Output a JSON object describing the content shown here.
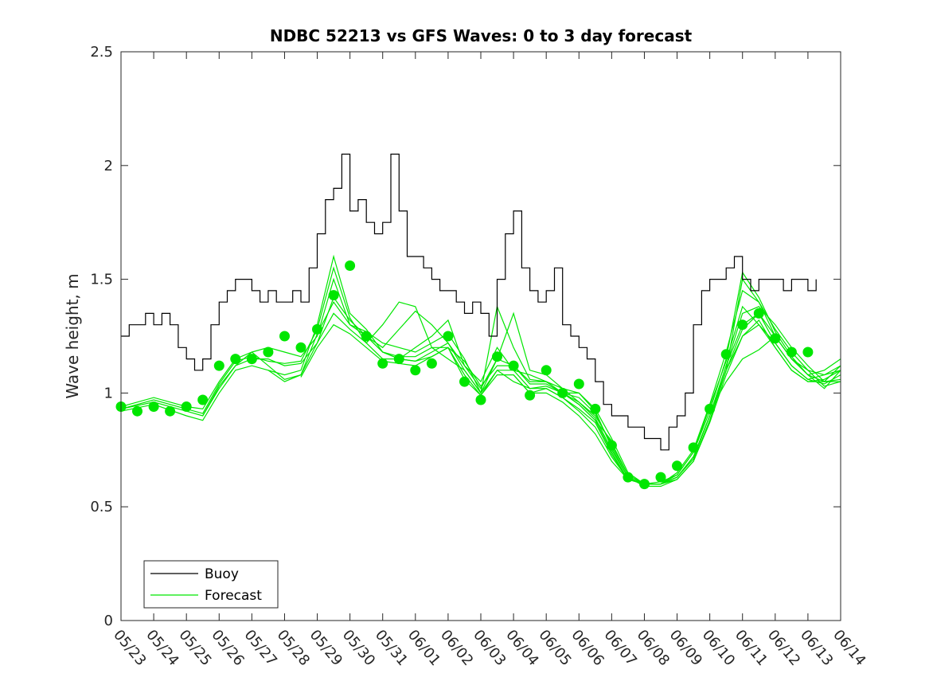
{
  "chart_data": {
    "type": "line",
    "title": "NDBC 52213 vs GFS Waves: 0 to 3 day forecast",
    "ylabel": "Wave height, m",
    "xlabel": "",
    "xlim": [
      0,
      22
    ],
    "ylim": [
      0,
      2.5
    ],
    "yticks": [
      0,
      0.5,
      1,
      1.5,
      2,
      2.5
    ],
    "ytick_labels": [
      "0",
      "0.5",
      "1",
      "1.5",
      "2",
      "2.5"
    ],
    "xticks": [
      0,
      1,
      2,
      3,
      4,
      5,
      6,
      7,
      8,
      9,
      10,
      11,
      12,
      13,
      14,
      15,
      16,
      17,
      18,
      19,
      20,
      21,
      22
    ],
    "xtick_labels": [
      "05/23",
      "05/24",
      "05/25",
      "05/26",
      "05/27",
      "05/28",
      "05/29",
      "05/30",
      "05/31",
      "06/01",
      "06/02",
      "06/03",
      "06/04",
      "06/05",
      "06/06",
      "06/07",
      "06/08",
      "06/09",
      "06/10",
      "06/11",
      "06/12",
      "06/13",
      "06/14"
    ],
    "x_units": "days from 05/23",
    "grid": false,
    "legend_placement": "bottom-left",
    "legend": [
      {
        "label": "Buoy",
        "color": "#000000"
      },
      {
        "label": "Forecast",
        "color": "#00e600"
      }
    ],
    "colors": {
      "buoy": "#000000",
      "forecast": "#00e600",
      "axes": "#262626"
    },
    "buoy": {
      "x": [
        0,
        0.25,
        0.5,
        0.75,
        1,
        1.25,
        1.5,
        1.75,
        2,
        2.25,
        2.5,
        2.75,
        3,
        3.25,
        3.5,
        3.75,
        4,
        4.25,
        4.5,
        4.75,
        5,
        5.25,
        5.5,
        5.75,
        6,
        6.25,
        6.5,
        6.75,
        7,
        7.25,
        7.5,
        7.75,
        8,
        8.25,
        8.5,
        8.75,
        9,
        9.25,
        9.5,
        9.75,
        10,
        10.25,
        10.5,
        10.75,
        11,
        11.25,
        11.5,
        11.75,
        12,
        12.25,
        12.5,
        12.75,
        13,
        13.25,
        13.5,
        13.75,
        14,
        14.25,
        14.5,
        14.75,
        15,
        15.25,
        15.5,
        15.75,
        16,
        16.25,
        16.5,
        16.75,
        17,
        17.25,
        17.5,
        17.75,
        18,
        18.25,
        18.5,
        18.75,
        19,
        19.25,
        19.5,
        19.75,
        20,
        20.25,
        20.5,
        20.75,
        21,
        21.25
      ],
      "y": [
        1.25,
        1.3,
        1.3,
        1.35,
        1.3,
        1.35,
        1.3,
        1.2,
        1.15,
        1.1,
        1.15,
        1.3,
        1.4,
        1.45,
        1.5,
        1.5,
        1.45,
        1.4,
        1.45,
        1.4,
        1.4,
        1.45,
        1.4,
        1.55,
        1.7,
        1.85,
        1.9,
        2.05,
        1.8,
        1.85,
        1.75,
        1.7,
        1.75,
        2.05,
        1.8,
        1.6,
        1.6,
        1.55,
        1.5,
        1.45,
        1.45,
        1.4,
        1.35,
        1.4,
        1.35,
        1.25,
        1.5,
        1.7,
        1.8,
        1.55,
        1.45,
        1.4,
        1.45,
        1.55,
        1.3,
        1.25,
        1.2,
        1.15,
        1.05,
        0.95,
        0.9,
        0.9,
        0.85,
        0.85,
        0.8,
        0.8,
        0.75,
        0.85,
        0.9,
        1.0,
        1.3,
        1.45,
        1.5,
        1.5,
        1.55,
        1.6,
        1.5,
        1.45,
        1.5,
        1.5,
        1.5,
        1.45,
        1.5,
        1.5,
        1.45,
        1.5
      ]
    },
    "forecast_markers": {
      "x": [
        0,
        0.5,
        1,
        1.5,
        2,
        2.5,
        3,
        3.5,
        4,
        4.5,
        5,
        5.5,
        6,
        6.5,
        7,
        7.5,
        8,
        8.5,
        9,
        9.5,
        10,
        10.5,
        11,
        11.5,
        12,
        12.5,
        13,
        13.5,
        14,
        14.5,
        15,
        15.5,
        16,
        16.5,
        17,
        17.5,
        18,
        18.5,
        19,
        19.5,
        20,
        20.5,
        21
      ],
      "y": [
        0.94,
        0.92,
        0.94,
        0.92,
        0.94,
        0.97,
        1.12,
        1.15,
        1.15,
        1.18,
        1.25,
        1.2,
        1.28,
        1.43,
        1.56,
        1.25,
        1.13,
        1.15,
        1.1,
        1.13,
        1.25,
        1.05,
        0.97,
        1.16,
        1.12,
        0.99,
        1.1,
        1.0,
        1.04,
        0.93,
        0.77,
        0.63,
        0.6,
        0.63,
        0.68,
        0.76,
        0.93,
        1.17,
        1.3,
        1.35,
        1.24,
        1.18,
        1.18
      ]
    },
    "series": [
      {
        "x": [
          0,
          1,
          2,
          2.5,
          3,
          3.5,
          4,
          4.5,
          5,
          5.5,
          6,
          6.5,
          7,
          7.5,
          8,
          8.5,
          9,
          9.5,
          10,
          10.5,
          11,
          11.5,
          12,
          12.5,
          13,
          13.5,
          14,
          14.5,
          15,
          15.5,
          16,
          16.5,
          17,
          17.5,
          18,
          18.5,
          19,
          19.5,
          20,
          20.5,
          21,
          21.5,
          22
        ],
        "y": [
          0.94,
          0.98,
          0.94,
          0.93,
          1.05,
          1.15,
          1.18,
          1.2,
          1.18,
          1.16,
          1.25,
          1.5,
          1.3,
          1.27,
          1.22,
          1.2,
          1.18,
          1.22,
          1.26,
          1.15,
          1.0,
          1.15,
          1.12,
          1.05,
          1.05,
          1.0,
          1.0,
          0.93,
          0.8,
          0.65,
          0.6,
          0.6,
          0.65,
          0.75,
          0.95,
          1.18,
          1.45,
          1.4,
          1.25,
          1.15,
          1.1,
          1.08,
          1.1
        ]
      },
      {
        "x": [
          0,
          1,
          2,
          2.5,
          3,
          3.5,
          4,
          4.5,
          5,
          5.5,
          6,
          6.5,
          7,
          7.5,
          8,
          8.5,
          9,
          9.5,
          10,
          10.5,
          11,
          11.5,
          12,
          12.5,
          13,
          13.5,
          14,
          14.5,
          15,
          15.5,
          16,
          16.5,
          17,
          17.5,
          18,
          18.5,
          19,
          19.5,
          20,
          20.5,
          21,
          21.5,
          22
        ],
        "y": [
          0.93,
          0.96,
          0.92,
          0.9,
          1.02,
          1.12,
          1.15,
          1.15,
          1.12,
          1.13,
          1.22,
          1.42,
          1.32,
          1.25,
          1.2,
          1.28,
          1.36,
          1.3,
          1.22,
          1.12,
          1.05,
          1.2,
          1.1,
          1.08,
          1.05,
          1.02,
          0.96,
          0.9,
          0.78,
          0.64,
          0.6,
          0.6,
          0.63,
          0.72,
          0.9,
          1.12,
          1.35,
          1.38,
          1.3,
          1.2,
          1.12,
          1.05,
          1.05
        ]
      },
      {
        "x": [
          0,
          1,
          2,
          2.5,
          3,
          3.5,
          4,
          4.5,
          5,
          5.5,
          6,
          6.5,
          7,
          7.5,
          8,
          8.5,
          9,
          9.5,
          10,
          10.5,
          11,
          11.5,
          12,
          12.5,
          13,
          13.5,
          14,
          14.5,
          15,
          15.5,
          16,
          16.5,
          17,
          17.5,
          18,
          18.5,
          19,
          19.5,
          20,
          20.5,
          21,
          21.5,
          22
        ],
        "y": [
          0.92,
          0.95,
          0.9,
          0.88,
          1.0,
          1.1,
          1.12,
          1.1,
          1.08,
          1.1,
          1.3,
          1.6,
          1.35,
          1.28,
          1.18,
          1.15,
          1.2,
          1.25,
          1.32,
          1.12,
          1.02,
          1.15,
          1.35,
          1.1,
          1.08,
          1.02,
          1.0,
          0.92,
          0.76,
          0.63,
          0.59,
          0.59,
          0.62,
          0.7,
          0.88,
          1.1,
          1.5,
          1.4,
          1.28,
          1.18,
          1.1,
          1.03,
          1.05
        ]
      },
      {
        "x": [
          0,
          1,
          2,
          2.5,
          3,
          3.5,
          4,
          4.5,
          5,
          5.5,
          6,
          6.5,
          7,
          7.5,
          8,
          8.5,
          9,
          9.5,
          10,
          10.5,
          11,
          11.5,
          12,
          12.5,
          13,
          13.5,
          14,
          14.5,
          15,
          15.5,
          16,
          16.5,
          17,
          17.5,
          18,
          18.5,
          19,
          19.5,
          20,
          20.5,
          21,
          21.5,
          22
        ],
        "y": [
          0.93,
          0.97,
          0.93,
          0.91,
          1.04,
          1.14,
          1.16,
          1.14,
          1.13,
          1.14,
          1.28,
          1.55,
          1.33,
          1.22,
          1.3,
          1.4,
          1.38,
          1.2,
          1.15,
          1.1,
          1.0,
          1.38,
          1.2,
          1.06,
          1.05,
          1.0,
          0.98,
          0.91,
          0.77,
          0.64,
          0.6,
          0.6,
          0.64,
          0.74,
          0.92,
          1.15,
          1.53,
          1.42,
          1.27,
          1.16,
          1.08,
          1.02,
          1.1
        ]
      },
      {
        "x": [
          2.5,
          3,
          3.5,
          4,
          4.5,
          5,
          5.5,
          6,
          6.5,
          7,
          7.5,
          8,
          8.5,
          9,
          9.5,
          10,
          10.5,
          11,
          11.5,
          12,
          12.5,
          13,
          13.5,
          14,
          14.5,
          15,
          15.5,
          16,
          16.5,
          17,
          17.5,
          18,
          18.5,
          19,
          19.5,
          20,
          20.5,
          21,
          21.5,
          22
        ],
        "y": [
          0.9,
          1.03,
          1.12,
          1.18,
          1.12,
          1.06,
          1.08,
          1.26,
          1.4,
          1.3,
          1.25,
          1.18,
          1.16,
          1.16,
          1.2,
          1.2,
          1.14,
          1.03,
          1.12,
          1.12,
          1.04,
          1.04,
          1.0,
          0.96,
          0.89,
          0.75,
          0.63,
          0.6,
          0.6,
          0.63,
          0.71,
          0.9,
          1.12,
          1.3,
          1.35,
          1.25,
          1.15,
          1.08,
          1.1,
          1.15
        ]
      },
      {
        "x": [
          4.5,
          5,
          5.5,
          6,
          6.5,
          7,
          7.5,
          8,
          8.5,
          9,
          9.5,
          10,
          10.5,
          11,
          11.5,
          12,
          12.5,
          13,
          13.5,
          14,
          14.5,
          15,
          15.5,
          16,
          16.5,
          17,
          17.5,
          18,
          18.5,
          19,
          19.5,
          20,
          20.5,
          21,
          21.5,
          22
        ],
        "y": [
          1.1,
          1.05,
          1.08,
          1.22,
          1.35,
          1.28,
          1.22,
          1.15,
          1.15,
          1.14,
          1.18,
          1.22,
          1.1,
          1.0,
          1.1,
          1.1,
          1.02,
          1.03,
          1.0,
          0.95,
          0.88,
          0.74,
          0.62,
          0.6,
          0.6,
          0.62,
          0.7,
          0.88,
          1.1,
          1.28,
          1.35,
          1.22,
          1.12,
          1.06,
          1.08,
          1.12
        ]
      },
      {
        "x": [
          5.5,
          6,
          6.5,
          7,
          7.5,
          8,
          8.5,
          9,
          9.5,
          10,
          10.5,
          11,
          11.5,
          12,
          12.5,
          13,
          13.5,
          14,
          14.5,
          15,
          15.5,
          16,
          16.5,
          17,
          17.5,
          18,
          18.5,
          19,
          19.5,
          20,
          20.5,
          21,
          21.5,
          22
        ],
        "y": [
          1.07,
          1.2,
          1.3,
          1.26,
          1.2,
          1.14,
          1.13,
          1.12,
          1.16,
          1.2,
          1.08,
          0.99,
          1.08,
          1.08,
          1.0,
          1.02,
          0.98,
          0.93,
          0.87,
          0.73,
          0.62,
          0.6,
          0.6,
          0.62,
          0.7,
          0.87,
          1.08,
          1.25,
          1.32,
          1.2,
          1.1,
          1.05,
          1.06,
          1.1
        ]
      },
      {
        "x": [
          7,
          7.5,
          8,
          8.5,
          9,
          9.5,
          10,
          10.5,
          11,
          11.5,
          12,
          12.5,
          13,
          13.5,
          14,
          14.5,
          15,
          15.5,
          16,
          16.5,
          17,
          17.5,
          18,
          18.5,
          19,
          19.5,
          20,
          20.5,
          21,
          21.5,
          22
        ],
        "y": [
          1.32,
          1.25,
          1.18,
          1.15,
          1.14,
          1.16,
          1.2,
          1.06,
          0.99,
          1.1,
          1.05,
          1.02,
          1.02,
          0.98,
          0.92,
          0.85,
          0.72,
          0.62,
          0.6,
          0.6,
          0.63,
          0.72,
          0.9,
          1.1,
          1.25,
          1.3,
          1.2,
          1.1,
          1.05,
          1.05,
          1.12
        ]
      },
      {
        "x": [
          12,
          12.5,
          13,
          13.5,
          14,
          14.5,
          15,
          15.5,
          16,
          16.5,
          17,
          17.5,
          18,
          18.5,
          19,
          19.5,
          20,
          20.5,
          21,
          21.5,
          22
        ],
        "y": [
          1.08,
          1.0,
          1.0,
          0.96,
          0.9,
          0.82,
          0.7,
          0.62,
          0.6,
          0.61,
          0.64,
          0.74,
          0.94,
          1.14,
          1.38,
          1.3,
          1.22,
          1.12,
          1.06,
          1.04,
          1.08
        ]
      },
      {
        "x": [
          13,
          13.5,
          14,
          14.5,
          15
        ],
        "y": [
          1.05,
          1.0,
          0.95,
          0.88,
          0.79
        ]
      },
      {
        "x": [
          18,
          18.5,
          19,
          19.5,
          20,
          20.5,
          21,
          21.5,
          22
        ],
        "y": [
          0.92,
          1.05,
          1.15,
          1.19,
          1.25,
          1.15,
          1.08,
          1.05,
          1.06
        ]
      }
    ]
  }
}
